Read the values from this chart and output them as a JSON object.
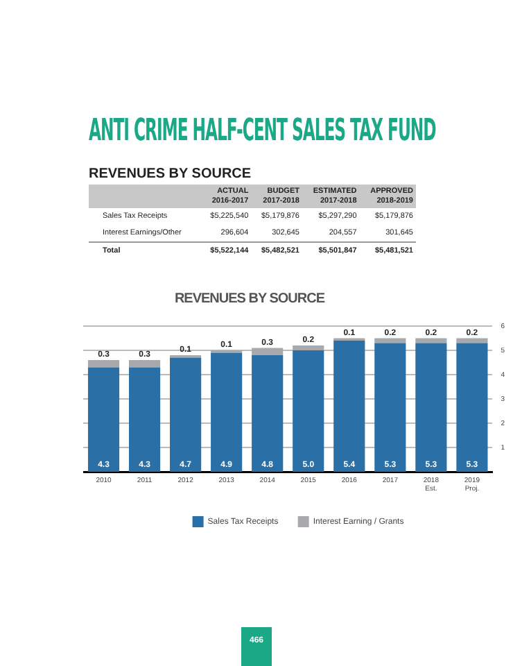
{
  "chart_data": [
    {
      "type": "other",
      "title": "ANTI CRIME HALF-CENT SALES TAX FUND",
      "subtitle": "REVENUES BY SOURCE",
      "categories": [
        "ACTUAL\n2016-2017",
        "BUDGET\n2017-2018",
        "ESTIMATED\n2017-2018",
        "APPROVED\n2018-2019"
      ],
      "y_categories": [
        "Sales Tax Receipts",
        "Interest Earnings/Other",
        "Total"
      ],
      "cell_labels": [
        [
          "$5,225,540",
          "$5,179,876",
          "$5,297,290",
          "$5,179,876"
        ],
        [
          "296,604",
          "302,645",
          "204,557",
          "301,645"
        ],
        [
          "$5,522,144",
          "$5,482,521",
          "$5,501,847",
          "$5,481,521"
        ]
      ]
    },
    {
      "type": "bar",
      "title": "REVENUES BY SOURCE",
      "stacked": true,
      "categories": [
        "2010",
        "2011",
        "2012",
        "2013",
        "2014",
        "2015",
        "2016",
        "2017",
        "2018\nEst.",
        "2019\nProj."
      ],
      "series": [
        {
          "name": "Sales Tax Receipts",
          "color": "#2a6fa6",
          "values": [
            4.3,
            4.3,
            4.7,
            4.9,
            4.8,
            5.0,
            5.4,
            5.3,
            5.3,
            5.3
          ],
          "value_labels": [
            "4.3",
            "4.3",
            "4.7",
            "4.9",
            "4.8",
            "5.0",
            "5.4",
            "5.3",
            "5.3",
            "5.3"
          ]
        },
        {
          "name": "Interest Earning / Grants",
          "color": "#a7a9ac",
          "values": [
            0.3,
            0.3,
            0.1,
            0.1,
            0.3,
            0.2,
            0.1,
            0.2,
            0.2,
            0.2
          ],
          "value_labels": [
            "0.3",
            "0.3",
            "0.1",
            "0.1",
            "0.3",
            "0.2",
            "0.1",
            "0.2",
            "0.2",
            "0.2"
          ]
        }
      ],
      "ylim": [
        0,
        6
      ],
      "yticks": [
        1,
        2,
        3,
        4,
        5,
        6
      ],
      "grid": "y",
      "legend": "bottom",
      "annotations": [
        "466"
      ]
    }
  ]
}
